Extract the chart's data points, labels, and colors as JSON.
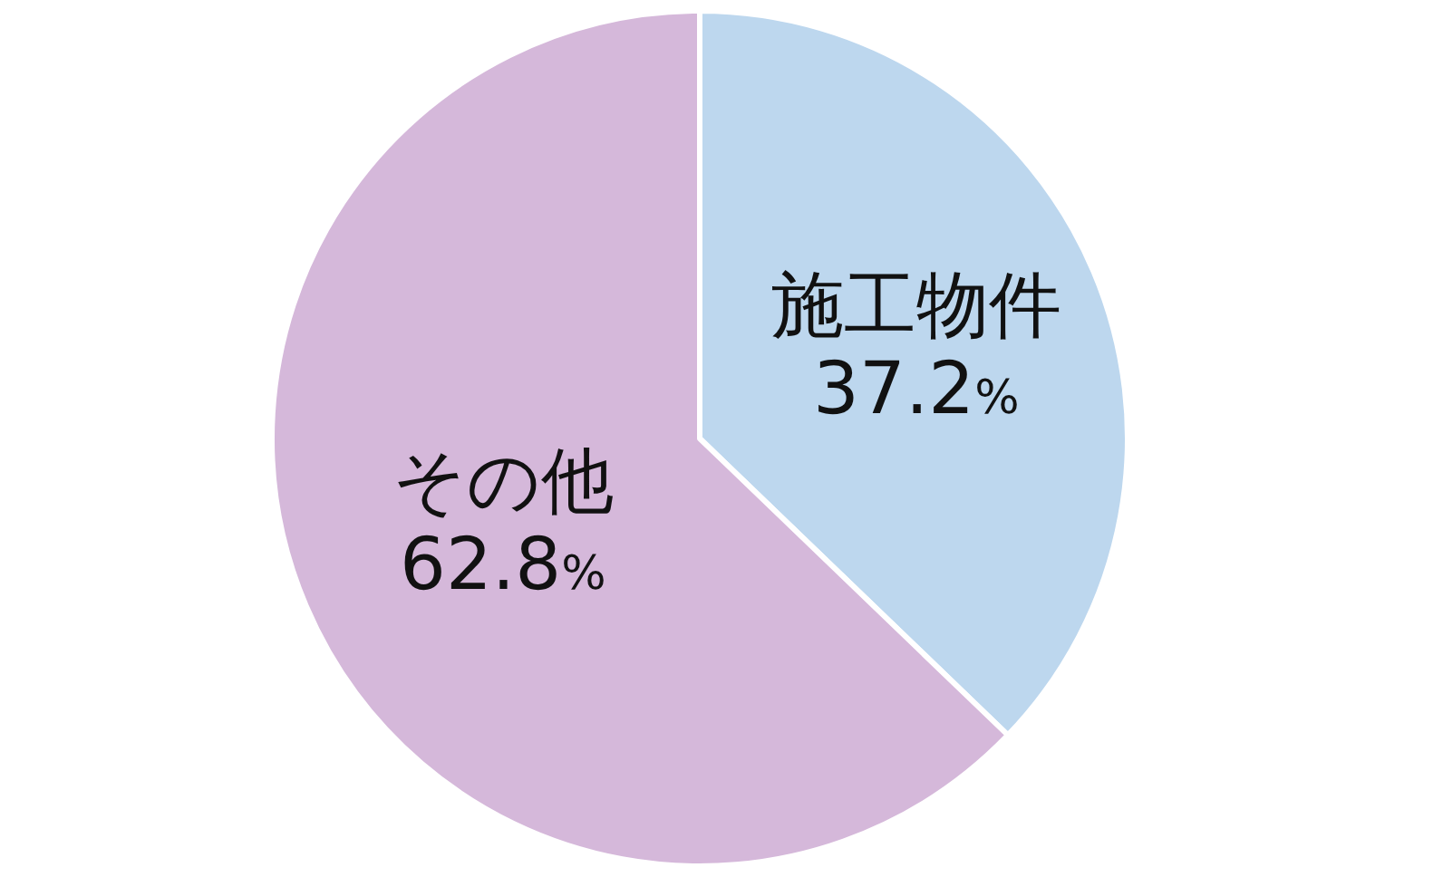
{
  "chart_data": {
    "type": "pie",
    "categories": [
      "施工物件",
      "その他"
    ],
    "values": [
      37.2,
      62.8
    ],
    "colors": [
      "#bdd7ee",
      "#d5b8da"
    ],
    "value_labels": [
      "37.2%",
      "62.8%"
    ],
    "legend": false
  }
}
